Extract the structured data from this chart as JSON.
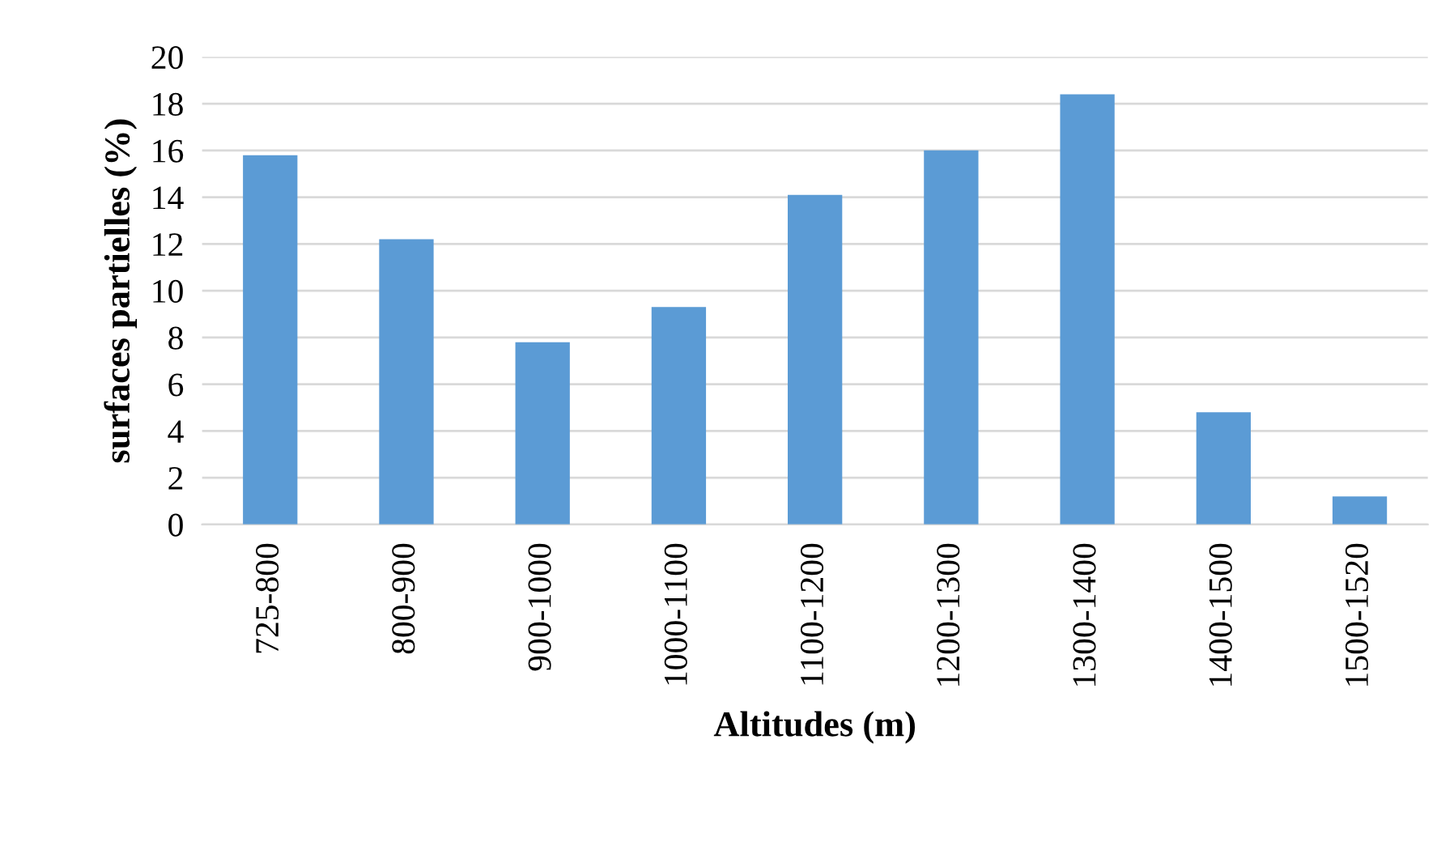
{
  "chart_data": {
    "type": "bar",
    "xlabel": "Altitudes (m)",
    "ylabel": "surfaces partielles (%)",
    "categories": [
      "725-800",
      "800-900",
      "900-1000",
      "1000-1100",
      "1100-1200",
      "1200-1300",
      "1300-1400",
      "1400-1500",
      "1500-1520"
    ],
    "values": [
      15.8,
      12.2,
      7.8,
      9.3,
      14.1,
      16.0,
      18.4,
      4.8,
      1.2
    ],
    "color": "#5b9bd5",
    "ylim": [
      0,
      20
    ],
    "yticks": [
      0,
      2,
      4,
      6,
      8,
      10,
      12,
      14,
      16,
      18,
      20
    ],
    "grid": "y"
  }
}
